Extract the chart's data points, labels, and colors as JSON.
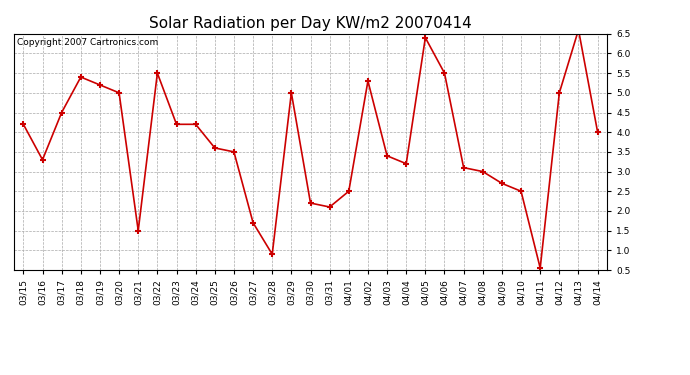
{
  "title": "Solar Radiation per Day KW/m2 20070414",
  "copyright": "Copyright 2007 Cartronics.com",
  "dates": [
    "03/15",
    "03/16",
    "03/17",
    "03/18",
    "03/19",
    "03/20",
    "03/21",
    "03/22",
    "03/23",
    "03/24",
    "03/25",
    "03/26",
    "03/27",
    "03/28",
    "03/29",
    "03/30",
    "03/31",
    "04/01",
    "04/02",
    "04/03",
    "04/04",
    "04/05",
    "04/06",
    "04/07",
    "04/08",
    "04/09",
    "04/10",
    "04/11",
    "04/12",
    "04/13",
    "04/14"
  ],
  "values": [
    4.2,
    3.3,
    4.5,
    5.4,
    5.2,
    5.0,
    1.5,
    5.5,
    4.2,
    4.2,
    3.6,
    3.5,
    1.7,
    0.9,
    5.0,
    2.2,
    2.1,
    2.5,
    5.3,
    3.4,
    3.2,
    6.4,
    5.5,
    3.1,
    3.0,
    2.7,
    2.5,
    0.55,
    5.0,
    6.6,
    4.0
  ],
  "line_color": "#cc0000",
  "marker": "+",
  "marker_size": 5,
  "marker_color": "#cc0000",
  "bg_color": "#ffffff",
  "plot_bg_color": "#ffffff",
  "grid_color": "#aaaaaa",
  "ylim": [
    0.5,
    6.5
  ],
  "yticks": [
    0.5,
    1.0,
    1.5,
    2.0,
    2.5,
    3.0,
    3.5,
    4.0,
    4.5,
    5.0,
    5.5,
    6.0,
    6.5
  ],
  "title_fontsize": 11,
  "copyright_fontsize": 6.5,
  "tick_fontsize": 6.5
}
